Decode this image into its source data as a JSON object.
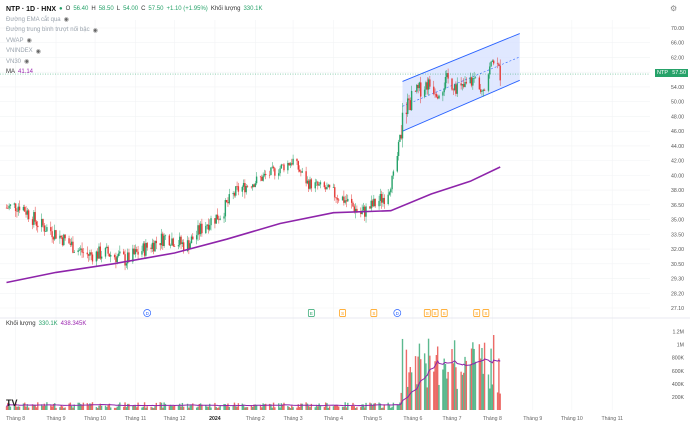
{
  "header": {
    "symbol": "NTP · 1D · HNX",
    "open_label": "O",
    "open": "56.40",
    "high_label": "H",
    "high": "58.50",
    "low_label": "L",
    "low": "54.00",
    "close_label": "C",
    "close": "57.50",
    "change": "+1.10 (+1.95%)",
    "volume_label": "Khối lượng",
    "volume": "330.1K"
  },
  "legend": {
    "items": [
      "Đường EMA cắt qua",
      "Đường trung bình trượt nối bậc",
      "VWAP",
      "VNINDEX",
      "VN30"
    ],
    "ma_label": "MA",
    "ma_value": "41.14"
  },
  "volume_legend": {
    "label": "Khối lượng",
    "value": "330.1K",
    "ma_value": "438.345K"
  },
  "current_price_tag": {
    "symbol": "NTP",
    "value": "57.50"
  },
  "colors": {
    "up": "#26a269",
    "down": "#e53935",
    "ma": "#8e24aa",
    "channel": "#2962ff",
    "channel_fill": "#d6e0ff"
  },
  "chart_data": {
    "type": "candlestick",
    "x_axis_labels": [
      "Tháng 8",
      "Tháng 9",
      "Tháng 10",
      "Tháng 11",
      "Tháng 12",
      "2024",
      "Tháng 2",
      "Tháng 3",
      "Tháng 4",
      "Tháng 5",
      "Tháng 6",
      "Tháng 7",
      "Tháng 8",
      "Tháng 9",
      "Tháng 10",
      "Tháng 11"
    ],
    "y_axis_labels": [
      "70.00",
      "66.00",
      "62.00",
      "58.00",
      "54.00",
      "50.00",
      "48.00",
      "46.00",
      "44.00",
      "42.00",
      "40.00",
      "38.00",
      "36.50",
      "35.00",
      "33.50",
      "32.00",
      "30.50",
      "29.30",
      "28.20",
      "27.10"
    ],
    "volume_axis_labels": [
      "1.2M",
      "1M",
      "800K",
      "600K",
      "400K",
      "200K"
    ],
    "price_anchors": [
      [
        "2023-07-25",
        36.2
      ],
      [
        "2023-08-05",
        36.5
      ],
      [
        "2023-08-18",
        34.6
      ],
      [
        "2023-09-01",
        33.6
      ],
      [
        "2023-09-15",
        32.2
      ],
      [
        "2023-09-25",
        31.4
      ],
      [
        "2023-10-10",
        31.6
      ],
      [
        "2023-10-25",
        30.9
      ],
      [
        "2023-11-10",
        32.2
      ],
      [
        "2023-11-25",
        33.3
      ],
      [
        "2023-12-10",
        32.3
      ],
      [
        "2023-12-25",
        34.6
      ],
      [
        "2024-01-05",
        35.5
      ],
      [
        "2024-01-18",
        38.0
      ],
      [
        "2024-02-01",
        39.2
      ],
      [
        "2024-02-15",
        40.5
      ],
      [
        "2024-03-01",
        42.0
      ],
      [
        "2024-03-12",
        39.0
      ],
      [
        "2024-03-25",
        38.2
      ],
      [
        "2024-04-10",
        37.0
      ],
      [
        "2024-04-22",
        35.6
      ],
      [
        "2024-05-03",
        36.6
      ],
      [
        "2024-05-12",
        37.6
      ],
      [
        "2024-05-18",
        40.2
      ],
      [
        "2024-05-25",
        48.5
      ],
      [
        "2024-06-02",
        52.0
      ],
      [
        "2024-06-12",
        55.0
      ],
      [
        "2024-06-20",
        53.0
      ],
      [
        "2024-06-28",
        56.0
      ],
      [
        "2024-07-08",
        53.2
      ],
      [
        "2024-07-18",
        56.2
      ],
      [
        "2024-07-25",
        54.2
      ],
      [
        "2024-08-02",
        61.8
      ],
      [
        "2024-08-07",
        57.5
      ]
    ],
    "ma_anchors": [
      [
        "2023-07-25",
        29.0
      ],
      [
        "2023-09-01",
        29.8
      ],
      [
        "2023-10-15",
        30.5
      ],
      [
        "2023-12-01",
        31.6
      ],
      [
        "2024-01-10",
        33.0
      ],
      [
        "2024-02-20",
        34.6
      ],
      [
        "2024-04-01",
        35.7
      ],
      [
        "2024-05-15",
        35.9
      ],
      [
        "2024-06-15",
        37.6
      ],
      [
        "2024-07-15",
        39.2
      ],
      [
        "2024-08-07",
        41.14
      ]
    ],
    "channel": {
      "upper": [
        [
          "2024-05-24",
          55.5
        ],
        [
          "2024-08-22",
          68.5
        ]
      ],
      "lower": [
        [
          "2024-05-24",
          46.0
        ],
        [
          "2024-08-22",
          55.8
        ]
      ]
    },
    "event_markers": [
      [
        "2023-11-10",
        "D"
      ],
      [
        "2024-03-15",
        "E"
      ],
      [
        "2024-04-08",
        "S"
      ],
      [
        "2024-05-02",
        "S"
      ],
      [
        "2024-05-20",
        "D"
      ],
      [
        "2024-06-12",
        "S"
      ],
      [
        "2024-06-18",
        "S"
      ],
      [
        "2024-06-25",
        "S"
      ],
      [
        "2024-07-20",
        "S"
      ],
      [
        "2024-07-27",
        "S"
      ]
    ]
  }
}
